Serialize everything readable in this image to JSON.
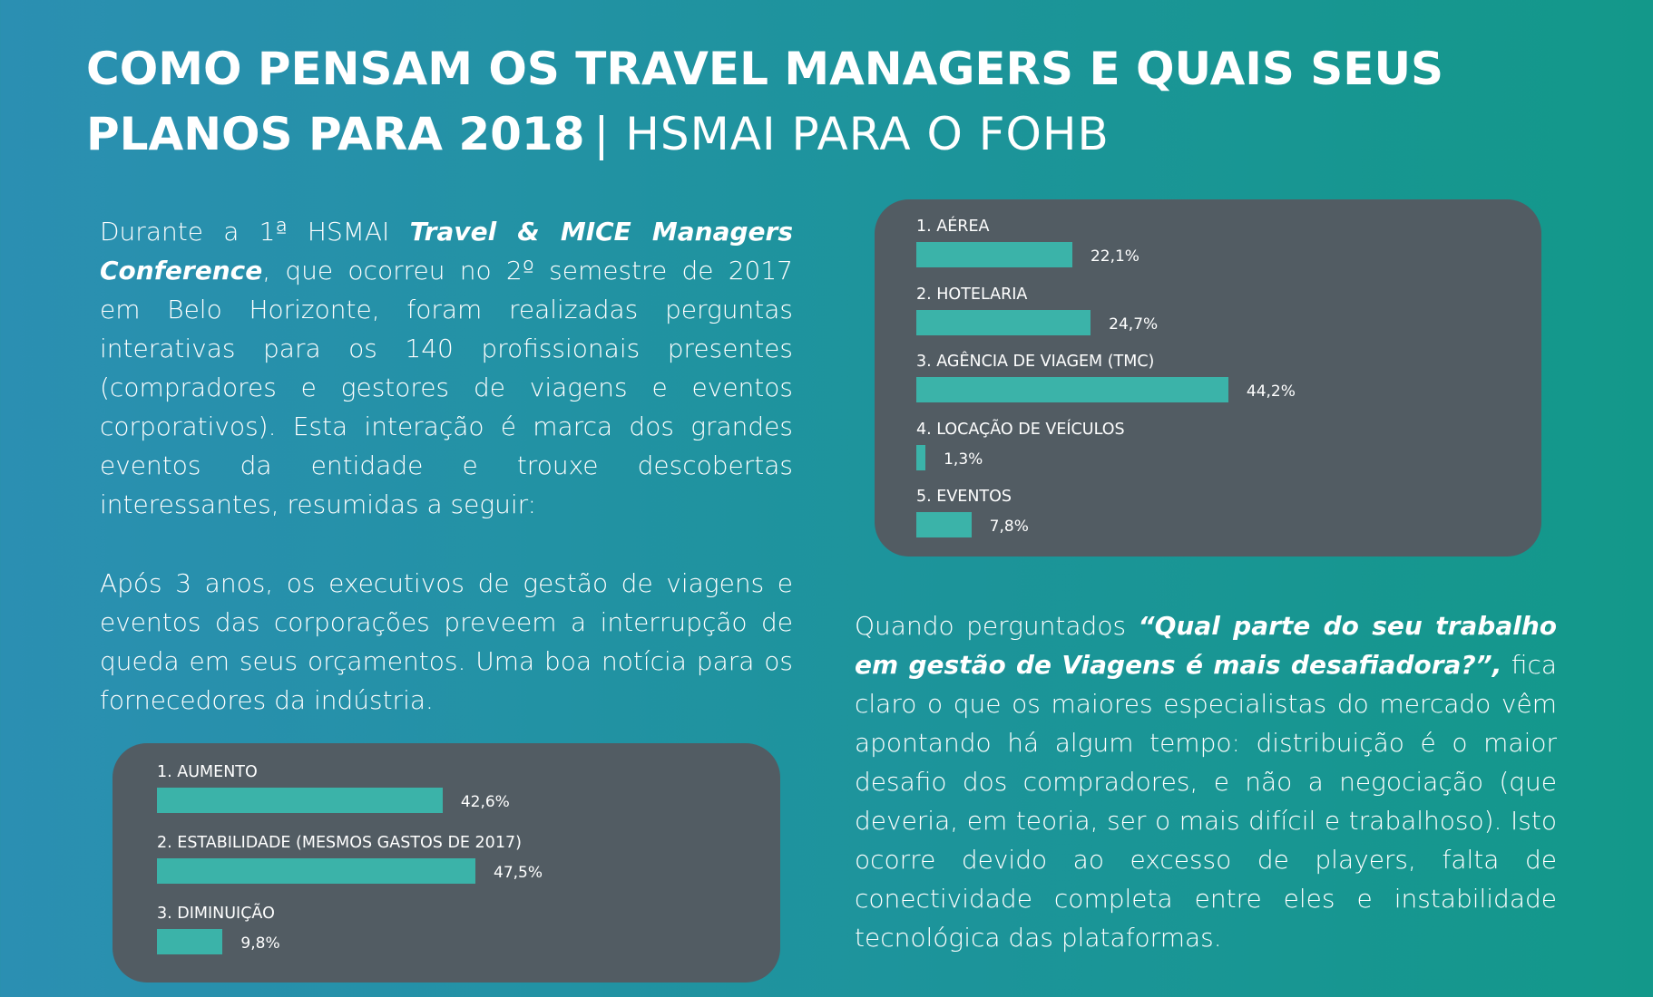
{
  "header": {
    "title_line1": "COMO PENSAM OS TRAVEL MANAGERS E QUAIS SEUS",
    "title_line2": "PLANOS PARA 2018",
    "subtitle": "| HSMAI PARA O FOHB"
  },
  "left_text": {
    "p1_start": "Durante a 1ª HSMAI ",
    "p1_emphasis": "Travel & MICE Managers Conference",
    "p1_end": ", que ocorreu no 2º semestre de 2017 em Belo Horizonte, foram realizadas perguntas interativas para os 140 profissionais presentes (compradores e gestores de viagens e eventos corporativos). Esta interação é marca dos grandes eventos da entidade e trouxe descobertas interessantes, resumidas a seguir:",
    "p2": "Após 3 anos, os executivos de gestão de viagens e eventos das corporações preveem a interrupção de queda em seus orçamentos. Uma boa notícia para os fornecedores da indústria."
  },
  "right_text": {
    "start": "Quando perguntados ",
    "emphasis": "“Qual parte do seu trabalho em gestão de Viagens é mais desafiadora?”,",
    "end": " fica claro o que os maiores especialistas do mercado vêm apontando há algum tempo: distribuição é o maior desafio dos compradores, e não a negociação (que deveria, em teoria, ser o mais difícil e trabalhoso). Isto ocorre devido ao excesso de players, falta de conectividade completa entre eles e instabilidade tecnológica das plataformas."
  },
  "chart_data": [
    {
      "type": "bar",
      "orientation": "horizontal",
      "color": "#3bb3a9",
      "categories": [
        "1. AUMENTO",
        "2. ESTABILIDADE (MESMOS GASTOS DE 2017)",
        "3. DIMINUIÇÃO"
      ],
      "values": [
        42.6,
        47.5,
        9.8
      ],
      "value_labels": [
        "42,6%",
        "47,5%",
        "9,8%"
      ]
    },
    {
      "type": "bar",
      "orientation": "horizontal",
      "color": "#3bb3a9",
      "categories": [
        "1. AÉREA",
        "2. HOTELARIA",
        "3. AGÊNCIA DE VIAGEM (TMC)",
        "4. LOCAÇÃO DE VEÍCULOS",
        "5. EVENTOS"
      ],
      "values": [
        22.1,
        24.7,
        44.2,
        1.3,
        7.8
      ],
      "value_labels": [
        "22,1%",
        "24,7%",
        "44,2%",
        "1,3%",
        "7,8%"
      ]
    }
  ]
}
